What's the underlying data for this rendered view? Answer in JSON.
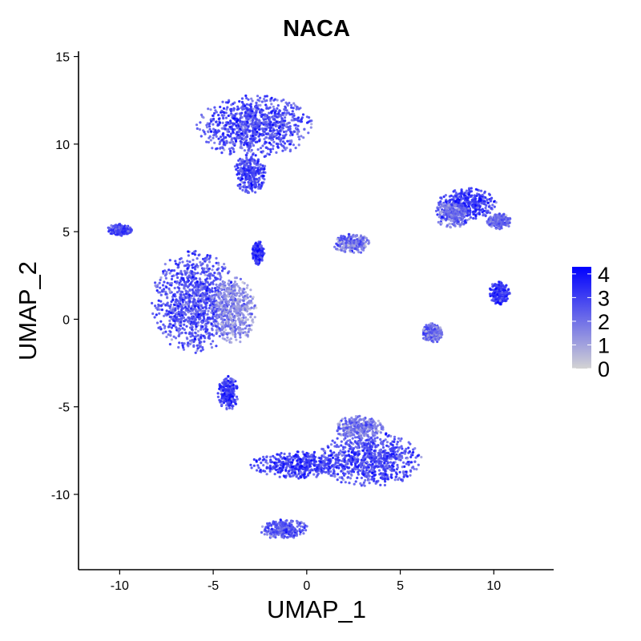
{
  "chart_data": {
    "type": "scatter",
    "title": "NACA",
    "xlabel": "UMAP_1",
    "ylabel": "UMAP_2",
    "xlim": [
      -12.2,
      13.2
    ],
    "ylim": [
      -14.3,
      15.3
    ],
    "x_ticks": [
      {
        "value": -10,
        "label": "-10"
      },
      {
        "value": -5,
        "label": "-5"
      },
      {
        "value": 0,
        "label": "0"
      },
      {
        "value": 5,
        "label": "5"
      },
      {
        "value": 10,
        "label": "10"
      }
    ],
    "y_ticks": [
      {
        "value": 15,
        "label": "15"
      },
      {
        "value": 10,
        "label": "10"
      },
      {
        "value": 5,
        "label": "5"
      },
      {
        "value": 0,
        "label": "0"
      },
      {
        "value": -5,
        "label": "-5"
      },
      {
        "value": -10,
        "label": "-10"
      }
    ],
    "grid": false,
    "legend": {
      "placement": "right",
      "type": "colorbar",
      "range": [
        0,
        4.3
      ],
      "ticks": [
        {
          "value": 4,
          "label": "4"
        },
        {
          "value": 3,
          "label": "3"
        },
        {
          "value": 2,
          "label": "2"
        },
        {
          "value": 1,
          "label": "1"
        },
        {
          "value": 0,
          "label": "0"
        }
      ],
      "color_low": "#d3d3d3",
      "color_high": "#0000ff"
    },
    "clusters": [
      {
        "center": [
          -2.8,
          11.0
        ],
        "spread": [
          2.8,
          1.6
        ],
        "mean_expression": 2.9
      },
      {
        "center": [
          -3.0,
          8.3
        ],
        "spread": [
          0.8,
          1.0
        ],
        "mean_expression": 3.1
      },
      {
        "center": [
          -6.0,
          1.0
        ],
        "spread": [
          2.1,
          2.6
        ],
        "mean_expression": 2.8
      },
      {
        "center": [
          -3.9,
          0.5
        ],
        "spread": [
          1.1,
          1.7
        ],
        "mean_expression": 1.5
      },
      {
        "center": [
          -4.2,
          -4.2
        ],
        "spread": [
          0.5,
          0.9
        ],
        "mean_expression": 3.2
      },
      {
        "center": [
          -2.6,
          3.8
        ],
        "spread": [
          0.3,
          0.6
        ],
        "mean_expression": 3.3
      },
      {
        "center": [
          -10.0,
          5.1
        ],
        "spread": [
          0.6,
          0.3
        ],
        "mean_expression": 3.0
      },
      {
        "center": [
          2.4,
          4.3
        ],
        "spread": [
          0.9,
          0.5
        ],
        "mean_expression": 2.0
      },
      {
        "center": [
          3.4,
          -8.0
        ],
        "spread": [
          2.5,
          1.4
        ],
        "mean_expression": 3.0
      },
      {
        "center": [
          -0.5,
          -8.3
        ],
        "spread": [
          2.3,
          0.7
        ],
        "mean_expression": 3.2
      },
      {
        "center": [
          2.8,
          -6.2
        ],
        "spread": [
          1.2,
          0.6
        ],
        "mean_expression": 2.0
      },
      {
        "center": [
          -1.2,
          -12.0
        ],
        "spread": [
          1.2,
          0.5
        ],
        "mean_expression": 2.6
      },
      {
        "center": [
          8.6,
          6.6
        ],
        "spread": [
          1.4,
          0.8
        ],
        "mean_expression": 3.4
      },
      {
        "center": [
          7.8,
          6.0
        ],
        "spread": [
          0.9,
          0.7
        ],
        "mean_expression": 2.2
      },
      {
        "center": [
          10.3,
          5.6
        ],
        "spread": [
          0.6,
          0.4
        ],
        "mean_expression": 2.2
      },
      {
        "center": [
          10.3,
          1.5
        ],
        "spread": [
          0.5,
          0.6
        ],
        "mean_expression": 3.4
      },
      {
        "center": [
          6.7,
          -0.8
        ],
        "spread": [
          0.5,
          0.5
        ],
        "mean_expression": 2.2
      }
    ]
  }
}
